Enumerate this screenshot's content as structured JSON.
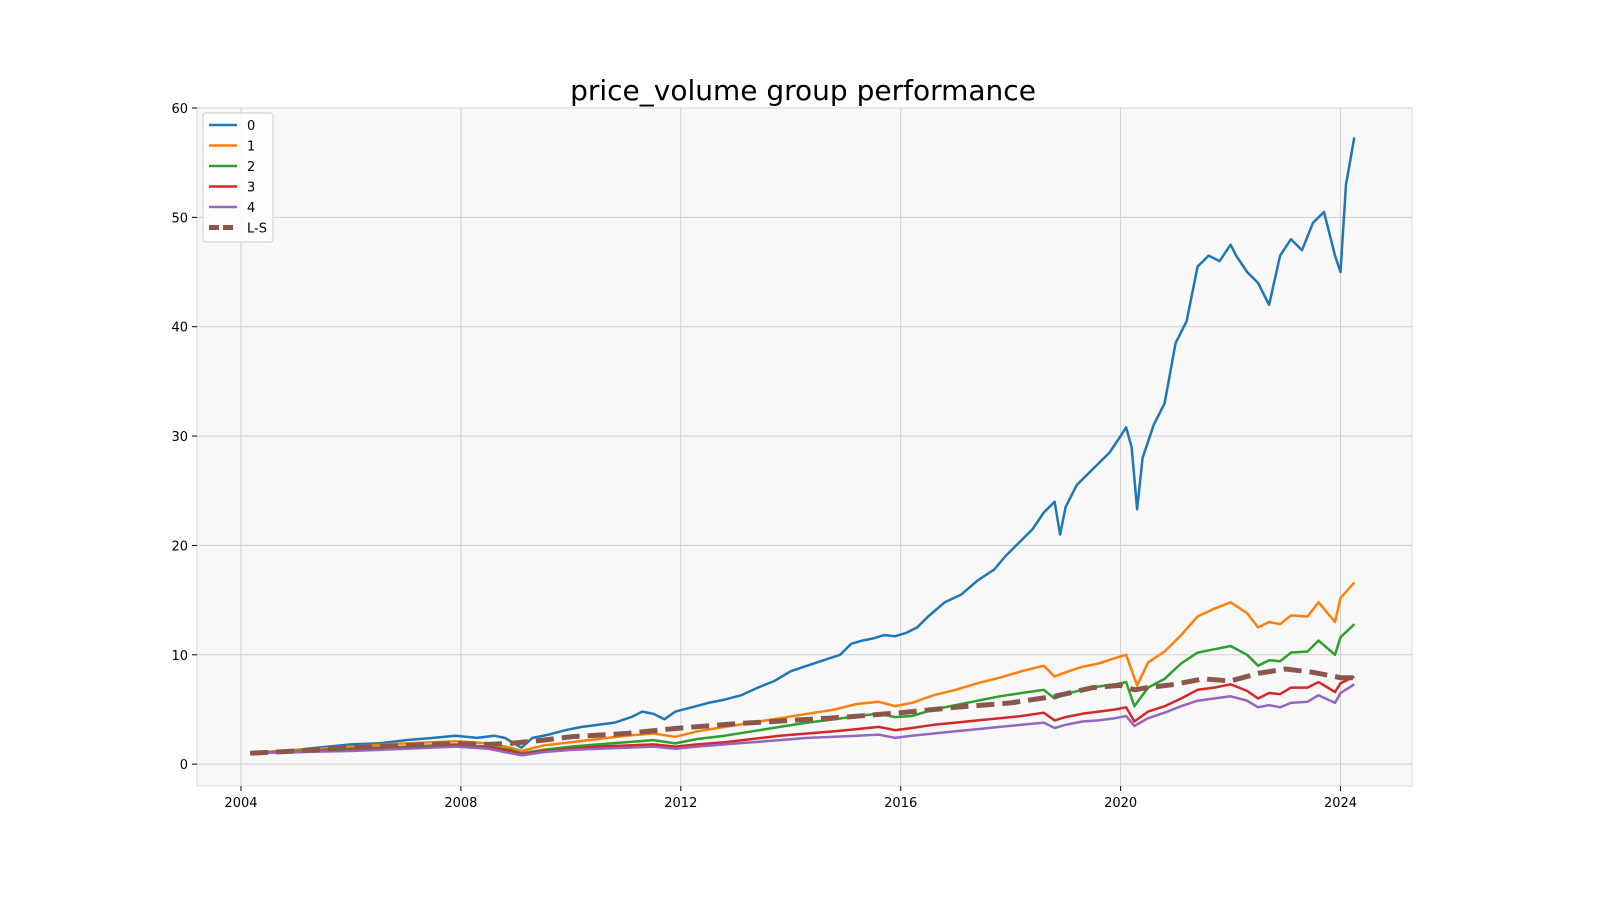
{
  "chart_data": {
    "type": "line",
    "title": "price_volume group performance",
    "xlabel": "",
    "ylabel": "",
    "xlim": [
      2003.2,
      2025.3
    ],
    "ylim": [
      -2,
      60
    ],
    "x_ticks": [
      "2004",
      "2008",
      "2012",
      "2016",
      "2020",
      "2024"
    ],
    "y_ticks": [
      "0",
      "10",
      "20",
      "30",
      "40",
      "50",
      "60"
    ],
    "grid": true,
    "legend_position": "top-left",
    "colors": {
      "0": "#1f77b4",
      "1": "#ff7f0e",
      "2": "#2ca02c",
      "3": "#d62728",
      "4": "#9467bd",
      "L-S": "#8c564b",
      "plot_background": "#f8f8f8"
    },
    "series": [
      {
        "name": "0",
        "style": "solid",
        "x": [
          2004.17,
          2005,
          2006,
          2006.5,
          2007,
          2007.5,
          2007.9,
          2008.3,
          2008.6,
          2008.8,
          2009.1,
          2009.3,
          2009.6,
          2009.9,
          2010.2,
          2010.5,
          2010.8,
          2011.1,
          2011.3,
          2011.5,
          2011.7,
          2011.9,
          2012.2,
          2012.5,
          2012.8,
          2013.1,
          2013.4,
          2013.7,
          2014.0,
          2014.3,
          2014.6,
          2014.9,
          2015.1,
          2015.3,
          2015.5,
          2015.7,
          2015.9,
          2016.1,
          2016.3,
          2016.5,
          2016.8,
          2017.1,
          2017.4,
          2017.7,
          2017.9,
          2018.2,
          2018.4,
          2018.6,
          2018.8,
          2018.9,
          2019.0,
          2019.2,
          2019.4,
          2019.6,
          2019.8,
          2020.0,
          2020.1,
          2020.2,
          2020.3,
          2020.4,
          2020.6,
          2020.8,
          2021.0,
          2021.2,
          2021.4,
          2021.6,
          2021.8,
          2022.0,
          2022.1,
          2022.3,
          2022.5,
          2022.7,
          2022.9,
          2023.1,
          2023.3,
          2023.5,
          2023.7,
          2023.9,
          2024.0,
          2024.1,
          2024.25
        ],
        "values": [
          1.0,
          1.3,
          1.8,
          1.9,
          2.2,
          2.4,
          2.6,
          2.4,
          2.6,
          2.4,
          1.5,
          2.4,
          2.7,
          3.1,
          3.4,
          3.6,
          3.8,
          4.3,
          4.8,
          4.6,
          4.1,
          4.8,
          5.2,
          5.6,
          5.9,
          6.3,
          7.0,
          7.6,
          8.5,
          9.0,
          9.5,
          10.0,
          11.0,
          11.3,
          11.5,
          11.8,
          11.7,
          12.0,
          12.5,
          13.5,
          14.8,
          15.5,
          16.8,
          17.8,
          19.0,
          20.5,
          21.5,
          23.0,
          24.0,
          21.0,
          23.5,
          25.5,
          26.5,
          27.5,
          28.5,
          30.0,
          30.8,
          29.0,
          23.3,
          28.0,
          31.0,
          33.0,
          38.5,
          40.5,
          45.5,
          46.5,
          46.0,
          47.5,
          46.5,
          45.0,
          44.0,
          42.0,
          46.5,
          48.0,
          47.0,
          49.5,
          50.5,
          46.5,
          45.0,
          53.0,
          57.3
        ]
      },
      {
        "name": "1",
        "style": "solid",
        "x": [
          2004.17,
          2005,
          2006,
          2007,
          2007.9,
          2008.5,
          2008.9,
          2009.1,
          2009.5,
          2010,
          2010.5,
          2011,
          2011.5,
          2011.9,
          2012.3,
          2012.8,
          2013.3,
          2013.8,
          2014.3,
          2014.8,
          2015.2,
          2015.6,
          2015.9,
          2016.2,
          2016.6,
          2017,
          2017.4,
          2017.8,
          2018.2,
          2018.6,
          2018.8,
          2019.0,
          2019.3,
          2019.6,
          2019.9,
          2020.1,
          2020.3,
          2020.5,
          2020.8,
          2021.1,
          2021.4,
          2021.7,
          2022.0,
          2022.3,
          2022.5,
          2022.7,
          2022.9,
          2023.1,
          2023.4,
          2023.6,
          2023.9,
          2024.0,
          2024.25
        ],
        "values": [
          1.0,
          1.3,
          1.6,
          1.9,
          2.1,
          1.9,
          1.5,
          1.2,
          1.7,
          2.0,
          2.3,
          2.6,
          2.8,
          2.5,
          3.0,
          3.4,
          3.8,
          4.2,
          4.6,
          5.0,
          5.5,
          5.7,
          5.3,
          5.6,
          6.3,
          6.8,
          7.4,
          7.9,
          8.5,
          9.0,
          8.0,
          8.4,
          8.9,
          9.2,
          9.7,
          10.0,
          7.2,
          9.3,
          10.3,
          11.8,
          13.5,
          14.2,
          14.8,
          13.8,
          12.5,
          13.0,
          12.8,
          13.6,
          13.5,
          14.8,
          13.0,
          15.2,
          16.6
        ]
      },
      {
        "name": "2",
        "style": "solid",
        "x": [
          2004.17,
          2005,
          2006,
          2007,
          2007.9,
          2008.5,
          2008.9,
          2009.1,
          2009.5,
          2010,
          2010.5,
          2011,
          2011.5,
          2011.9,
          2012.3,
          2012.8,
          2013.3,
          2013.8,
          2014.3,
          2014.8,
          2015.2,
          2015.6,
          2015.9,
          2016.2,
          2016.6,
          2017,
          2017.4,
          2017.8,
          2018.2,
          2018.6,
          2018.8,
          2019.0,
          2019.3,
          2019.6,
          2019.9,
          2020.1,
          2020.25,
          2020.5,
          2020.8,
          2021.1,
          2021.4,
          2021.7,
          2022.0,
          2022.3,
          2022.5,
          2022.7,
          2022.9,
          2023.1,
          2023.4,
          2023.6,
          2023.9,
          2024.0,
          2024.25
        ],
        "values": [
          1.0,
          1.2,
          1.4,
          1.6,
          1.8,
          1.6,
          1.3,
          1.0,
          1.3,
          1.6,
          1.8,
          2.0,
          2.2,
          1.9,
          2.3,
          2.6,
          3.0,
          3.4,
          3.8,
          4.1,
          4.4,
          4.6,
          4.3,
          4.4,
          5.0,
          5.4,
          5.8,
          6.2,
          6.5,
          6.8,
          6.0,
          6.4,
          6.8,
          7.1,
          7.3,
          7.5,
          5.3,
          7.0,
          7.8,
          9.2,
          10.2,
          10.5,
          10.8,
          10.0,
          9.0,
          9.5,
          9.4,
          10.2,
          10.3,
          11.3,
          10.0,
          11.6,
          12.8
        ]
      },
      {
        "name": "3",
        "style": "solid",
        "x": [
          2004.17,
          2005,
          2006,
          2007,
          2007.9,
          2008.5,
          2008.9,
          2009.1,
          2009.5,
          2010,
          2010.5,
          2011,
          2011.5,
          2011.9,
          2012.3,
          2012.8,
          2013.3,
          2013.8,
          2014.3,
          2014.8,
          2015.2,
          2015.6,
          2015.9,
          2016.2,
          2016.6,
          2017,
          2017.4,
          2017.8,
          2018.2,
          2018.6,
          2018.8,
          2019.0,
          2019.3,
          2019.6,
          2019.9,
          2020.1,
          2020.25,
          2020.5,
          2020.8,
          2021.1,
          2021.4,
          2021.7,
          2022.0,
          2022.3,
          2022.5,
          2022.7,
          2022.9,
          2023.1,
          2023.4,
          2023.6,
          2023.9,
          2024.0,
          2024.25
        ],
        "values": [
          1.0,
          1.1,
          1.3,
          1.5,
          1.7,
          1.5,
          1.2,
          0.9,
          1.2,
          1.4,
          1.6,
          1.7,
          1.8,
          1.6,
          1.8,
          2.0,
          2.3,
          2.6,
          2.8,
          3.0,
          3.2,
          3.4,
          3.1,
          3.3,
          3.6,
          3.8,
          4.0,
          4.2,
          4.4,
          4.7,
          4.0,
          4.3,
          4.6,
          4.8,
          5.0,
          5.2,
          3.9,
          4.8,
          5.3,
          6.0,
          6.8,
          7.0,
          7.3,
          6.7,
          6.0,
          6.5,
          6.4,
          7.0,
          7.0,
          7.5,
          6.6,
          7.4,
          8.0
        ]
      },
      {
        "name": "4",
        "style": "solid",
        "x": [
          2004.17,
          2005,
          2006,
          2007,
          2007.9,
          2008.5,
          2008.9,
          2009.1,
          2009.5,
          2010,
          2010.5,
          2011,
          2011.5,
          2011.9,
          2012.3,
          2012.8,
          2013.3,
          2013.8,
          2014.3,
          2014.8,
          2015.2,
          2015.6,
          2015.9,
          2016.2,
          2016.6,
          2017,
          2017.4,
          2017.8,
          2018.2,
          2018.6,
          2018.8,
          2019.0,
          2019.3,
          2019.6,
          2019.9,
          2020.1,
          2020.25,
          2020.5,
          2020.8,
          2021.1,
          2021.4,
          2021.7,
          2022.0,
          2022.3,
          2022.5,
          2022.7,
          2022.9,
          2023.1,
          2023.4,
          2023.6,
          2023.9,
          2024.0,
          2024.25
        ],
        "values": [
          1.0,
          1.1,
          1.2,
          1.4,
          1.6,
          1.4,
          1.0,
          0.8,
          1.1,
          1.3,
          1.4,
          1.5,
          1.6,
          1.4,
          1.6,
          1.8,
          2.0,
          2.2,
          2.4,
          2.5,
          2.6,
          2.7,
          2.4,
          2.6,
          2.8,
          3.0,
          3.2,
          3.4,
          3.6,
          3.8,
          3.3,
          3.6,
          3.9,
          4.0,
          4.2,
          4.4,
          3.5,
          4.2,
          4.7,
          5.3,
          5.8,
          6.0,
          6.2,
          5.8,
          5.2,
          5.4,
          5.2,
          5.6,
          5.7,
          6.3,
          5.6,
          6.5,
          7.3
        ]
      },
      {
        "name": "L-S",
        "style": "dashed",
        "x": [
          2004.17,
          2005,
          2006,
          2007,
          2007.9,
          2008.5,
          2008.9,
          2009.5,
          2010,
          2011,
          2012,
          2013,
          2014,
          2015,
          2016,
          2017,
          2018,
          2018.8,
          2019.5,
          2020,
          2020.25,
          2020.5,
          2021,
          2021.5,
          2022,
          2022.5,
          2023,
          2023.5,
          2024,
          2024.25
        ],
        "values": [
          1.0,
          1.2,
          1.5,
          1.7,
          1.9,
          1.8,
          1.9,
          2.2,
          2.5,
          2.8,
          3.3,
          3.7,
          4.0,
          4.3,
          4.7,
          5.2,
          5.6,
          6.2,
          7.0,
          7.2,
          6.8,
          7.0,
          7.3,
          7.8,
          7.6,
          8.3,
          8.7,
          8.4,
          7.9,
          7.9
        ]
      }
    ]
  }
}
